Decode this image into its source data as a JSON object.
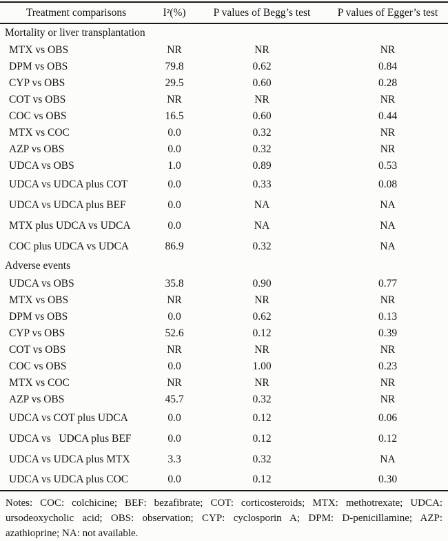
{
  "colors": {
    "background": "#fcfcfb",
    "text": "#141414",
    "rule": "#1a1a1a"
  },
  "table": {
    "headers": [
      "Treatment comparisons",
      "I²(%)",
      "P values of Begg’s test",
      "P values of Egger’s test"
    ],
    "sections": [
      {
        "title": "Mortality or liver transplantation",
        "rows": [
          {
            "comparison": "MTX vs OBS",
            "i2": "NR",
            "begg": "NR",
            "egger": "NR"
          },
          {
            "comparison": "DPM vs OBS",
            "i2": "79.8",
            "begg": "0.62",
            "egger": "0.84"
          },
          {
            "comparison": "CYP vs OBS",
            "i2": "29.5",
            "begg": "0.60",
            "egger": "0.28"
          },
          {
            "comparison": "COT vs OBS",
            "i2": "NR",
            "begg": "NR",
            "egger": "NR"
          },
          {
            "comparison": "COC vs OBS",
            "i2": "16.5",
            "begg": "0.60",
            "egger": "0.44"
          },
          {
            "comparison": "MTX vs COC",
            "i2": "0.0",
            "begg": "0.32",
            "egger": "NR"
          },
          {
            "comparison": "AZP vs OBS",
            "i2": "0.0",
            "begg": "0.32",
            "egger": "NR"
          },
          {
            "comparison": "UDCA vs OBS",
            "i2": "1.0",
            "begg": "0.89",
            "egger": "0.53"
          },
          {
            "comparison": "UDCA vs UDCA plus COT",
            "i2": "0.0",
            "begg": "0.33",
            "egger": "0.08"
          },
          {
            "comparison": "UDCA vs UDCA plus BEF",
            "i2": "0.0",
            "begg": "NA",
            "egger": "NA"
          },
          {
            "comparison": "MTX plus UDCA vs UDCA",
            "i2": "0.0",
            "begg": "NA",
            "egger": "NA"
          },
          {
            "comparison": "COC plus UDCA vs UDCA",
            "i2": "86.9",
            "begg": "0.32",
            "egger": "NA"
          }
        ]
      },
      {
        "title": "Adverse events",
        "rows": [
          {
            "comparison": "UDCA vs OBS",
            "i2": "35.8",
            "begg": "0.90",
            "egger": "0.77"
          },
          {
            "comparison": "MTX vs OBS",
            "i2": "NR",
            "begg": "NR",
            "egger": "NR"
          },
          {
            "comparison": "DPM vs OBS",
            "i2": "0.0",
            "begg": "0.62",
            "egger": "0.13"
          },
          {
            "comparison": "CYP vs OBS",
            "i2": "52.6",
            "begg": "0.12",
            "egger": "0.39"
          },
          {
            "comparison": "COT vs OBS",
            "i2": "NR",
            "begg": "NR",
            "egger": "NR"
          },
          {
            "comparison": "COC vs OBS",
            "i2": "0.0",
            "begg": "1.00",
            "egger": "0.23"
          },
          {
            "comparison": "MTX vs COC",
            "i2": "NR",
            "begg": "NR",
            "egger": "NR"
          },
          {
            "comparison": "AZP vs OBS",
            "i2": "45.7",
            "begg": "0.32",
            "egger": "NR"
          },
          {
            "comparison": "UDCA vs COT plus UDCA",
            "i2": "0.0",
            "begg": "0.12",
            "egger": "0.06"
          },
          {
            "comparison": "UDCA vs   UDCA plus BEF",
            "i2": "0.0",
            "begg": "0.12",
            "egger": "0.12"
          },
          {
            "comparison": "UDCA vs UDCA plus MTX",
            "i2": "3.3",
            "begg": "0.32",
            "egger": "NA"
          },
          {
            "comparison": "UDCA vs UDCA plus COC",
            "i2": "0.0",
            "begg": "0.12",
            "egger": "0.30"
          }
        ]
      }
    ],
    "notes": "Notes: COC: colchicine; BEF: bezafibrate; COT: corticosteroids; MTX: methotrexate; UDCA: ursodeoxycholic acid; OBS: observation; CYP: cyclosporin A; DPM: D-penicillamine; AZP: azathioprine; NA: not available."
  }
}
